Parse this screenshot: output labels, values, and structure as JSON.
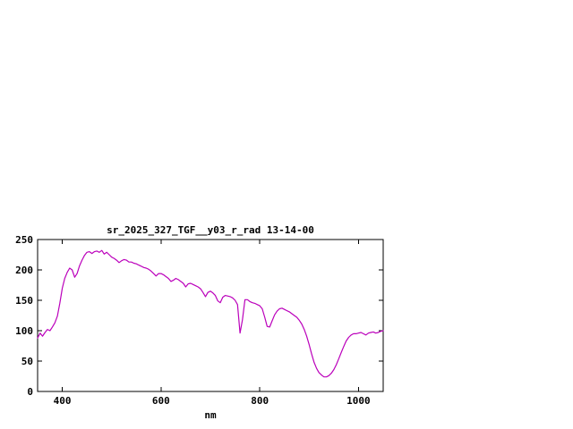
{
  "page": {
    "background_color": "#ffffff"
  },
  "chart_data": {
    "type": "line",
    "title": "sr_2025_327_TGF__y03_r_rad 13-14-00",
    "xlabel": "nm",
    "ylabel": "",
    "xlim": [
      350,
      1050
    ],
    "ylim": [
      0,
      250
    ],
    "xticks": [
      400,
      600,
      800,
      1000
    ],
    "yticks": [
      0,
      50,
      100,
      150,
      200,
      250
    ],
    "grid": false,
    "legend": "none",
    "line_color": "#bb00bb",
    "axis_color": "#000000",
    "x": [
      350,
      355,
      360,
      365,
      370,
      375,
      380,
      385,
      390,
      395,
      400,
      405,
      410,
      415,
      420,
      425,
      430,
      435,
      440,
      445,
      450,
      455,
      460,
      465,
      470,
      475,
      480,
      485,
      490,
      495,
      500,
      505,
      510,
      515,
      520,
      525,
      530,
      535,
      540,
      545,
      550,
      555,
      560,
      565,
      570,
      575,
      580,
      585,
      590,
      595,
      600,
      605,
      610,
      615,
      620,
      625,
      630,
      635,
      640,
      645,
      650,
      655,
      660,
      665,
      670,
      675,
      680,
      685,
      690,
      695,
      700,
      705,
      710,
      715,
      720,
      725,
      730,
      735,
      740,
      745,
      750,
      755,
      760,
      765,
      770,
      775,
      780,
      785,
      790,
      795,
      800,
      805,
      810,
      815,
      820,
      825,
      830,
      835,
      840,
      845,
      850,
      855,
      860,
      865,
      870,
      875,
      880,
      885,
      890,
      895,
      900,
      905,
      910,
      915,
      920,
      925,
      930,
      935,
      940,
      945,
      950,
      955,
      960,
      965,
      970,
      975,
      980,
      985,
      990,
      995,
      1000,
      1005,
      1010,
      1015,
      1020,
      1025,
      1030,
      1035,
      1040,
      1045,
      1050
    ],
    "values": [
      88,
      96,
      91,
      97,
      102,
      100,
      106,
      113,
      124,
      145,
      170,
      186,
      196,
      203,
      200,
      188,
      194,
      207,
      216,
      224,
      229,
      230,
      227,
      230,
      231,
      229,
      232,
      226,
      229,
      225,
      221,
      219,
      216,
      212,
      215,
      217,
      216,
      213,
      213,
      211,
      210,
      208,
      206,
      204,
      203,
      201,
      198,
      194,
      190,
      194,
      194,
      192,
      189,
      186,
      181,
      183,
      186,
      184,
      181,
      178,
      172,
      177,
      178,
      176,
      174,
      172,
      169,
      163,
      156,
      163,
      165,
      162,
      158,
      149,
      146,
      155,
      158,
      157,
      156,
      154,
      150,
      143,
      96,
      118,
      151,
      151,
      148,
      146,
      145,
      143,
      141,
      136,
      122,
      107,
      106,
      116,
      126,
      132,
      136,
      137,
      135,
      133,
      131,
      128,
      125,
      122,
      117,
      111,
      102,
      91,
      77,
      62,
      48,
      38,
      31,
      27,
      24,
      24,
      26,
      30,
      36,
      44,
      54,
      64,
      74,
      83,
      89,
      93,
      95,
      95,
      96,
      97,
      95,
      93,
      96,
      97,
      98,
      96,
      97,
      99,
      100
    ]
  }
}
